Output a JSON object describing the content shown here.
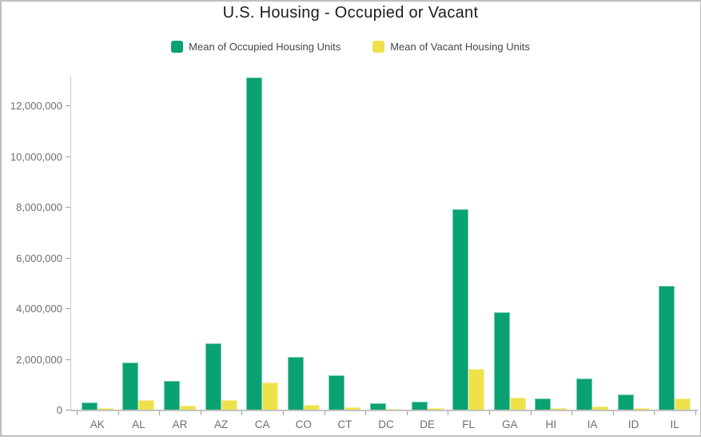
{
  "colors": {
    "occupied": "#0aa173",
    "vacant": "#eee24b",
    "axis_line": "#cbcbcb",
    "tick": "#9e9e9e",
    "axis_text": "#6e6e6e",
    "title_text": "#1c1c1c",
    "legend_text": "#40474e",
    "frame_border": "#bfbfbf"
  },
  "chart_data": {
    "type": "bar",
    "title": "U.S. Housing - Occupied or Vacant",
    "xlabel": "",
    "ylabel": "",
    "grid": false,
    "legend_position": "top",
    "categories": [
      "AK",
      "AL",
      "AR",
      "AZ",
      "CA",
      "CO",
      "CT",
      "DC",
      "DE",
      "FL",
      "GA",
      "HI",
      "IA",
      "ID",
      "IL"
    ],
    "series": [
      {
        "name": "Mean of Occupied Housing Units",
        "color_key": "occupied",
        "values": [
          280000,
          1860000,
          1130000,
          2610000,
          13100000,
          2080000,
          1350000,
          250000,
          310000,
          7920000,
          3840000,
          440000,
          1230000,
          600000,
          4870000
        ]
      },
      {
        "name": "Mean of Vacant Housing Units",
        "color_key": "vacant",
        "values": [
          60000,
          380000,
          160000,
          380000,
          1070000,
          190000,
          100000,
          30000,
          55000,
          1600000,
          460000,
          60000,
          130000,
          60000,
          450000
        ]
      }
    ],
    "ylim": [
      0,
      13200000
    ],
    "yticks": [
      0,
      2000000,
      4000000,
      6000000,
      8000000,
      10000000,
      12000000
    ]
  }
}
